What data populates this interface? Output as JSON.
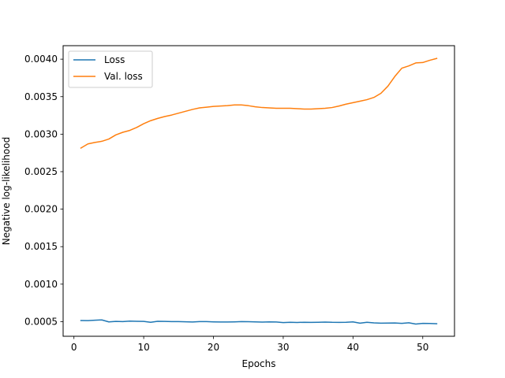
{
  "chart_data": {
    "type": "line",
    "title": "",
    "xlabel": "Epochs",
    "ylabel": "Negative log-likelihood",
    "xlim": [
      -1.55,
      54.55
    ],
    "ylim": [
      0.000305,
      0.00418
    ],
    "xticks": [
      0,
      10,
      20,
      30,
      40,
      50
    ],
    "xtick_labels": [
      "0",
      "10",
      "20",
      "30",
      "40",
      "50"
    ],
    "yticks": [
      0.0005,
      0.001,
      0.0015,
      0.002,
      0.0025,
      0.003,
      0.0035,
      0.004
    ],
    "ytick_labels": [
      "0.0005",
      "0.0010",
      "0.0015",
      "0.0020",
      "0.0025",
      "0.0030",
      "0.0035",
      "0.0040"
    ],
    "grid": false,
    "legend_position": "top-left",
    "x": [
      1,
      2,
      3,
      4,
      5,
      6,
      7,
      8,
      9,
      10,
      11,
      12,
      13,
      14,
      15,
      16,
      17,
      18,
      19,
      20,
      21,
      22,
      23,
      24,
      25,
      26,
      27,
      28,
      29,
      30,
      31,
      32,
      33,
      34,
      35,
      36,
      37,
      38,
      39,
      40,
      41,
      42,
      43,
      44,
      45,
      46,
      47,
      48,
      49,
      50,
      51,
      52
    ],
    "series": [
      {
        "name": "Loss",
        "color": "#1f77b4",
        "values": [
          0.000515,
          0.000514,
          0.000519,
          0.000523,
          0.000497,
          0.000503,
          0.000501,
          0.000507,
          0.000505,
          0.000503,
          0.000491,
          0.000505,
          0.000503,
          0.0005,
          0.0005,
          0.000498,
          0.000495,
          0.0005,
          0.0005,
          0.000497,
          0.000495,
          0.000495,
          0.000497,
          0.0005,
          0.000499,
          0.000497,
          0.000494,
          0.000497,
          0.000495,
          0.000488,
          0.000492,
          0.000489,
          0.000492,
          0.00049,
          0.000492,
          0.000494,
          0.000491,
          0.00049,
          0.000492,
          0.000497,
          0.00048,
          0.000491,
          0.000483,
          0.00048,
          0.000481,
          0.000482,
          0.000477,
          0.000485,
          0.000468,
          0.000477,
          0.000475,
          0.000472
        ]
      },
      {
        "name": "Val. loss",
        "color": "#ff7f0e",
        "values": [
          0.002815,
          0.00287,
          0.00289,
          0.002905,
          0.002935,
          0.00299,
          0.003025,
          0.00305,
          0.00309,
          0.00314,
          0.00318,
          0.00321,
          0.003235,
          0.003255,
          0.00328,
          0.003305,
          0.00333,
          0.00335,
          0.00336,
          0.00337,
          0.003375,
          0.00338,
          0.00339,
          0.00339,
          0.00338,
          0.003365,
          0.003355,
          0.00335,
          0.003345,
          0.003345,
          0.003345,
          0.00334,
          0.003335,
          0.003335,
          0.00334,
          0.003345,
          0.003355,
          0.003375,
          0.0034,
          0.00342,
          0.00344,
          0.00346,
          0.00349,
          0.003545,
          0.00364,
          0.00377,
          0.00388,
          0.00391,
          0.00395,
          0.003955,
          0.003985,
          0.00401
        ]
      }
    ]
  }
}
